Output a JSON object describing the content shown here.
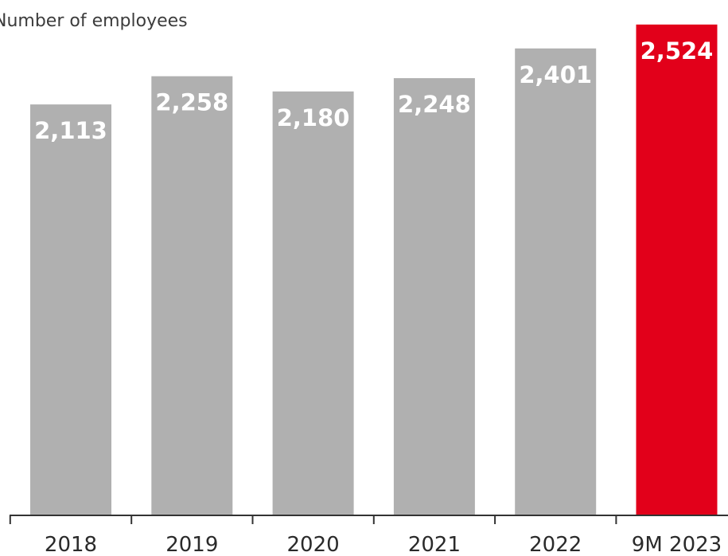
{
  "chart_data": {
    "type": "bar",
    "title": "Number of employees",
    "categories": [
      "2018",
      "2019",
      "2020",
      "2021",
      "2022",
      "9M 2023"
    ],
    "values": [
      2113,
      2258,
      2180,
      2248,
      2401,
      2524
    ],
    "value_labels": [
      "2,113",
      "2,258",
      "2,180",
      "2,248",
      "2,401",
      "2,524"
    ],
    "ylim": [
      0,
      2650
    ],
    "grid": false,
    "colors": {
      "default": "#b0b0b0",
      "highlight": "#e2001a",
      "highlight_index": 5,
      "axis": "#333333"
    }
  }
}
